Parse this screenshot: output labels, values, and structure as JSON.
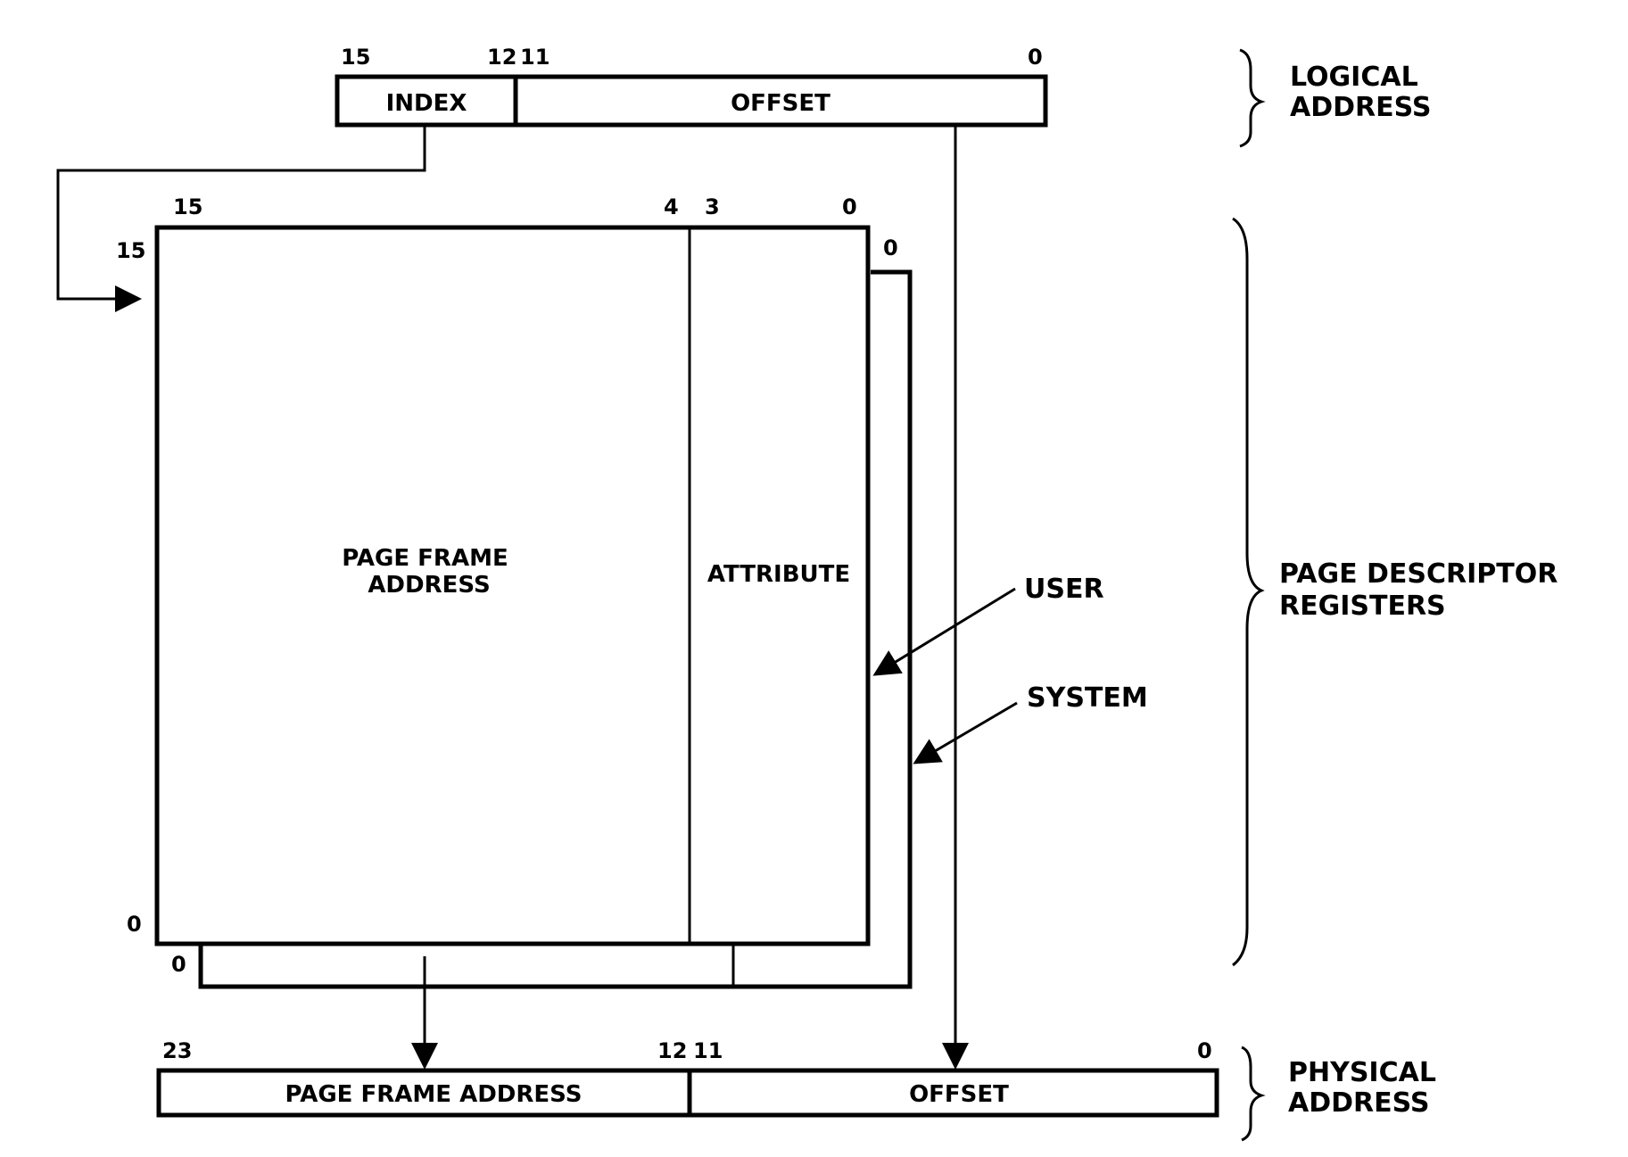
{
  "colors": {
    "ink": "#000000",
    "background": "#ffffff"
  },
  "logical": {
    "bits": {
      "b15": "15",
      "b12": "12",
      "b11": "11",
      "b0": "0"
    },
    "index_label": "INDEX",
    "offset_label": "OFFSET",
    "side_label": [
      "LOGICAL",
      "ADDRESS"
    ]
  },
  "pdr": {
    "bits": {
      "b15": "15",
      "b4": "4",
      "b3": "3",
      "b0": "0"
    },
    "row_first": "15",
    "row_last": "0",
    "system_row_first": "0",
    "system_row_last": "0",
    "page_frame_label": [
      "PAGE FRAME",
      "ADDRESS"
    ],
    "attribute_label": "ATTRIBUTE",
    "user_label": "USER",
    "system_label": "SYSTEM",
    "side_label": [
      "PAGE DESCRIPTOR",
      "REGISTERS"
    ]
  },
  "physical": {
    "bits": {
      "b23": "23",
      "b12": "12",
      "b11": "11",
      "b0": "0"
    },
    "page_frame_label": "PAGE FRAME ADDRESS",
    "offset_label": "OFFSET",
    "side_label": [
      "PHYSICAL",
      "ADDRESS"
    ]
  }
}
